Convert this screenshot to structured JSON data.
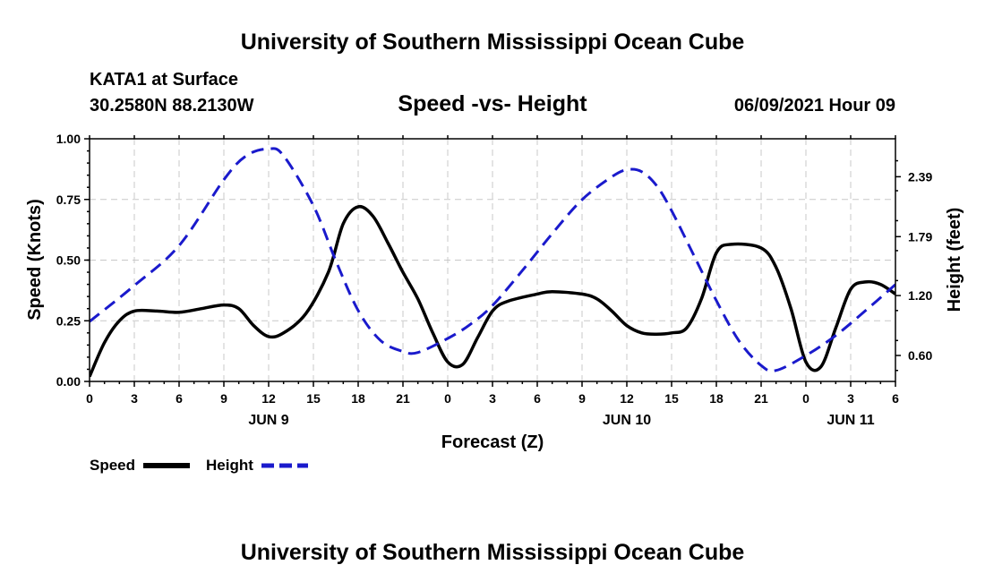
{
  "header": {
    "title_top": "University of Southern Mississippi Ocean Cube",
    "title_bottom": "University of Southern Mississippi Ocean Cube",
    "station": "KATA1 at Surface",
    "coords": "30.2580N  88.2130W",
    "plot_title": "Speed -vs- Height",
    "datetime": "06/09/2021 Hour 09"
  },
  "colors": {
    "speed": "#000000",
    "height": "#1a1acc",
    "grid": "#c8c8c8"
  },
  "chart_data": {
    "type": "line",
    "title": "Speed -vs- Height",
    "xlabel": "Forecast (Z)",
    "ylabel": "Speed (Knots)",
    "y2label": "Height (feet)",
    "xlim": [
      0,
      54
    ],
    "ylim": [
      0,
      1.0
    ],
    "y2lim": [
      0.34,
      2.77
    ],
    "grid": true,
    "x_ticks": [
      0,
      3,
      6,
      9,
      12,
      15,
      18,
      21,
      24,
      27,
      30,
      33,
      36,
      39,
      42,
      45,
      48,
      51,
      54
    ],
    "x_tick_labels": [
      "0",
      "3",
      "6",
      "9",
      "12",
      "15",
      "18",
      "21",
      "0",
      "3",
      "6",
      "9",
      "12",
      "15",
      "18",
      "21",
      "0",
      "3",
      "6"
    ],
    "date_labels": [
      {
        "x": 12,
        "label": "JUN 9"
      },
      {
        "x": 36,
        "label": "JUN 10"
      },
      {
        "x": 51,
        "label": "JUN 11"
      }
    ],
    "y_ticks": [
      0.0,
      0.25,
      0.5,
      0.75,
      1.0
    ],
    "y_tick_labels": [
      "0.00",
      "0.25",
      "0.50",
      "0.75",
      "1.00"
    ],
    "y2_ticks": [
      0.6,
      1.2,
      1.79,
      2.39
    ],
    "y2_tick_labels": [
      "0.60",
      "1.20",
      "1.79",
      "2.39"
    ],
    "legend": [
      {
        "name": "Speed",
        "style": "solid"
      },
      {
        "name": "Height",
        "style": "dashed"
      }
    ],
    "legend_position": "bottom-left",
    "series": [
      {
        "name": "Speed",
        "axis": "left",
        "x": [
          0,
          1,
          2,
          3,
          4.5,
          6,
          7.5,
          9,
          10,
          11,
          12,
          13,
          14.5,
          16,
          17,
          18,
          19,
          20,
          21,
          22,
          23,
          24,
          25,
          26,
          27,
          28,
          30,
          31,
          33,
          34,
          35,
          36,
          37,
          38,
          39,
          40,
          41,
          42,
          43,
          45,
          46,
          47,
          48,
          49,
          50,
          51,
          52,
          53,
          54
        ],
        "y": [
          0.02,
          0.16,
          0.25,
          0.29,
          0.29,
          0.285,
          0.3,
          0.315,
          0.3,
          0.23,
          0.185,
          0.2,
          0.28,
          0.45,
          0.65,
          0.72,
          0.68,
          0.57,
          0.45,
          0.34,
          0.2,
          0.08,
          0.07,
          0.18,
          0.29,
          0.33,
          0.36,
          0.37,
          0.36,
          0.34,
          0.29,
          0.23,
          0.2,
          0.195,
          0.2,
          0.22,
          0.34,
          0.53,
          0.565,
          0.55,
          0.47,
          0.3,
          0.08,
          0.06,
          0.22,
          0.38,
          0.41,
          0.4,
          0.36
        ]
      },
      {
        "name": "Height",
        "axis": "right",
        "x": [
          0,
          3,
          6,
          9,
          10.5,
          12,
          13,
          15,
          16.5,
          18,
          19.5,
          21,
          22,
          24,
          25.5,
          27,
          29,
          31,
          33,
          35,
          36,
          37,
          38,
          39,
          40.5,
          42,
          43.5,
          45,
          46,
          48,
          50,
          52,
          54
        ],
        "y": [
          0.94,
          1.3,
          1.7,
          2.36,
          2.6,
          2.67,
          2.6,
          2.1,
          1.55,
          1.05,
          0.75,
          0.64,
          0.63,
          0.77,
          0.91,
          1.1,
          1.45,
          1.82,
          2.16,
          2.39,
          2.46,
          2.44,
          2.3,
          2.05,
          1.6,
          1.15,
          0.75,
          0.5,
          0.45,
          0.6,
          0.8,
          1.05,
          1.31
        ]
      }
    ]
  }
}
